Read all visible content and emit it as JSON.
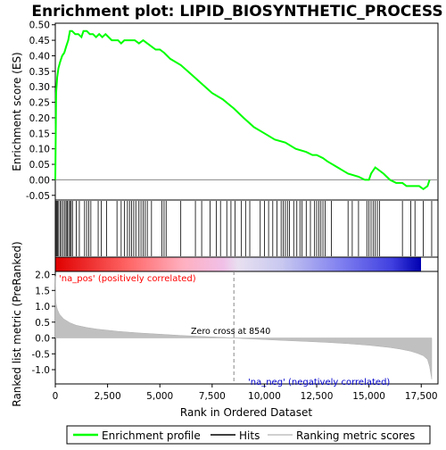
{
  "chart_data": {
    "type": "line",
    "title": "Enrichment plot: LIPID_BIOSYNTHETIC_PROCESS",
    "top_panel": {
      "ylabel": "Enrichment score (ES)",
      "ylim": [
        -0.065,
        0.505
      ],
      "yticks": [
        "-0.05",
        "0.00",
        "0.05",
        "0.10",
        "0.15",
        "0.20",
        "0.25",
        "0.30",
        "0.35",
        "0.40",
        "0.45",
        "0.50"
      ],
      "ytick_values": [
        -0.05,
        0.0,
        0.05,
        0.1,
        0.15,
        0.2,
        0.25,
        0.3,
        0.35,
        0.4,
        0.45,
        0.5
      ],
      "series": [
        {
          "name": "Enrichment profile",
          "color": "#00ff00",
          "x": [
            0,
            40,
            90,
            150,
            230,
            330,
            430,
            520,
            620,
            700,
            800,
            950,
            1100,
            1250,
            1350,
            1500,
            1650,
            1800,
            1950,
            2100,
            2250,
            2400,
            2550,
            2700,
            2850,
            3000,
            3150,
            3300,
            3450,
            3600,
            3800,
            4000,
            4200,
            4400,
            4600,
            4800,
            5000,
            5200,
            5500,
            6000,
            6500,
            7000,
            7500,
            8000,
            8540,
            9000,
            9500,
            10000,
            10500,
            11000,
            11500,
            12000,
            12300,
            12500,
            12800,
            13000,
            13500,
            14000,
            14500,
            14800,
            15000,
            15100,
            15200,
            15300,
            15500,
            15700,
            16000,
            16300,
            16600,
            16800,
            17000,
            17200,
            17400,
            17600,
            17800,
            17900
          ],
          "y": [
            0.0,
            0.28,
            0.33,
            0.36,
            0.38,
            0.4,
            0.41,
            0.43,
            0.45,
            0.48,
            0.48,
            0.47,
            0.47,
            0.46,
            0.48,
            0.48,
            0.47,
            0.47,
            0.46,
            0.47,
            0.46,
            0.47,
            0.46,
            0.45,
            0.45,
            0.45,
            0.44,
            0.45,
            0.45,
            0.45,
            0.45,
            0.44,
            0.45,
            0.44,
            0.43,
            0.42,
            0.42,
            0.41,
            0.39,
            0.37,
            0.34,
            0.31,
            0.28,
            0.26,
            0.23,
            0.2,
            0.17,
            0.15,
            0.13,
            0.12,
            0.1,
            0.09,
            0.08,
            0.08,
            0.07,
            0.06,
            0.04,
            0.02,
            0.01,
            0.0,
            0.0,
            0.02,
            0.03,
            0.04,
            0.03,
            0.02,
            0.0,
            -0.01,
            -0.01,
            -0.02,
            -0.02,
            -0.02,
            -0.02,
            -0.03,
            -0.02,
            0.0
          ]
        }
      ]
    },
    "hits": [
      20,
      60,
      110,
      160,
      230,
      300,
      380,
      460,
      520,
      580,
      640,
      700,
      760,
      820,
      1000,
      1150,
      1400,
      1500,
      1600,
      1700,
      2050,
      2200,
      2450,
      2950,
      3150,
      3300,
      3450,
      3550,
      3650,
      3750,
      3850,
      4000,
      4100,
      4200,
      4300,
      4400,
      4600,
      5100,
      5200,
      5300,
      6000,
      6700,
      7000,
      7400,
      7700,
      7900,
      8200,
      8400,
      8600,
      8900,
      9100,
      9300,
      9800,
      10000,
      10200,
      10400,
      10600,
      10800,
      10900,
      11000,
      11100,
      11200,
      11400,
      11550,
      11700,
      11800,
      12000,
      12200,
      12400,
      12500,
      12600,
      12700,
      12800,
      12900,
      13200,
      14000,
      14200,
      14500,
      14900,
      15000,
      15100,
      15200,
      15300,
      15400,
      15500,
      16600,
      17000,
      17200,
      17600,
      18000
    ],
    "bottom_panel": {
      "ylabel": "Ranked list metric (PreRanked)",
      "xlabel": "Rank in Ordered Dataset",
      "ylim": [
        -1.45,
        2.1
      ],
      "yticks": [
        "-1.0",
        "-0.5",
        "0.0",
        "0.5",
        "1.0",
        "1.5",
        "2.0"
      ],
      "ytick_values": [
        -1.0,
        -0.5,
        0.0,
        0.5,
        1.0,
        1.5,
        2.0
      ],
      "xlim": [
        0,
        18300
      ],
      "xticks": [
        "0",
        "2,500",
        "5,000",
        "7,500",
        "10,000",
        "12,500",
        "15,000",
        "17,500"
      ],
      "xtick_values": [
        0,
        2500,
        5000,
        7500,
        10000,
        12500,
        15000,
        17500
      ],
      "metric_curve": {
        "x": [
          0,
          30,
          100,
          200,
          400,
          700,
          1000,
          1500,
          2000,
          3000,
          4000,
          5000,
          6000,
          7000,
          8000,
          8540,
          9000,
          10000,
          11000,
          12000,
          13000,
          14000,
          15000,
          16000,
          16500,
          17000,
          17300,
          17600,
          17800,
          17900,
          18000
        ],
        "y": [
          1.95,
          1.1,
          0.9,
          0.75,
          0.6,
          0.48,
          0.4,
          0.33,
          0.28,
          0.21,
          0.16,
          0.12,
          0.08,
          0.05,
          0.02,
          0.0,
          -0.02,
          -0.05,
          -0.08,
          -0.11,
          -0.14,
          -0.18,
          -0.23,
          -0.3,
          -0.35,
          -0.42,
          -0.48,
          -0.56,
          -0.68,
          -0.9,
          -1.3
        ]
      },
      "zero_cross_label": "Zero cross at 8540",
      "zero_cross_x": 8540,
      "pos_label": "'na_pos' (positively correlated)",
      "neg_label": "'na_neg' (negatively correlated)"
    },
    "legend": [
      {
        "label": "Enrichment profile",
        "color": "#00ff00"
      },
      {
        "label": "Hits",
        "color": "#000000"
      },
      {
        "label": "Ranking metric scores",
        "color": "#c0c0c0"
      }
    ],
    "colors": {
      "pos_label": "#ff0000",
      "neg_label": "#0000cc",
      "metric_fill": "#c0c0c0",
      "zero_cross_line": "#888888"
    }
  }
}
